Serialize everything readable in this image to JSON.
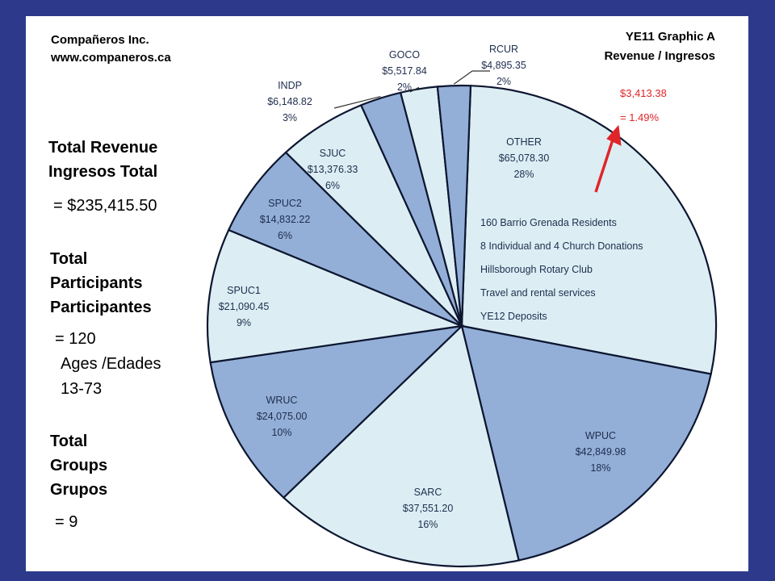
{
  "company": {
    "name": "Compañeros Inc.",
    "website": "www.companeros.ca"
  },
  "graphic": {
    "title": "YE11 Graphic A",
    "subtitle": "Revenue / Ingresos"
  },
  "stats": {
    "revenue": {
      "label_en": "Total Revenue",
      "label_es": "Ingresos Total",
      "value": "=  $235,415.50"
    },
    "participants": {
      "label_en": "Total",
      "label_mid": "Participants",
      "label_es": "Participantes",
      "value": "= 120",
      "ages_label": "Ages /Edades",
      "ages_value": "13-73"
    },
    "groups": {
      "label_en": "Total",
      "label_mid": "Groups",
      "label_es": "Grupos",
      "value": "=  9"
    }
  },
  "callout": {
    "amount": "$3,413.38",
    "percent": "= 1.49%",
    "color": "#e0252a"
  },
  "colors": {
    "light": "#dceef4",
    "dark": "#93afd7",
    "stroke": "#0d1630",
    "frame": "#2d3a8c"
  },
  "chart_data": {
    "type": "pie",
    "slices": [
      {
        "label": "OTHER",
        "value": 65078.3,
        "amount": "$65,078.30",
        "percent": "28%",
        "fill": "light"
      },
      {
        "label": "WPUC",
        "value": 42849.98,
        "amount": "$42,849.98",
        "percent": "18%",
        "fill": "dark"
      },
      {
        "label": "SARC",
        "value": 37551.2,
        "amount": "$37,551.20",
        "percent": "16%",
        "fill": "light"
      },
      {
        "label": "WRUC",
        "value": 24075.0,
        "amount": "$24,075.00",
        "percent": "10%",
        "fill": "dark"
      },
      {
        "label": "SPUC1",
        "value": 21090.45,
        "amount": "$21,090.45",
        "percent": "9%",
        "fill": "light"
      },
      {
        "label": "SPUC2",
        "value": 14832.22,
        "amount": "$14,832.22",
        "percent": "6%",
        "fill": "dark"
      },
      {
        "label": "SJUC",
        "value": 13376.33,
        "amount": "$13,376.33",
        "percent": "6%",
        "fill": "light"
      },
      {
        "label": "INDP",
        "value": 6148.82,
        "amount": "$6,148.82",
        "percent": "3%",
        "fill": "dark"
      },
      {
        "label": "GOCO",
        "value": 5517.84,
        "amount": "$5,517.84",
        "percent": "2%",
        "fill": "light"
      },
      {
        "label": "RCUR",
        "value": 4895.35,
        "amount": "$4,895.35",
        "percent": "2%",
        "fill": "dark"
      }
    ],
    "other_details": [
      "160 Barrio Grenada Residents",
      "8 Individual and 4 Church Donations",
      "Hillsborough Rotary Club",
      "Travel and rental services",
      "YE12 Deposits"
    ]
  }
}
